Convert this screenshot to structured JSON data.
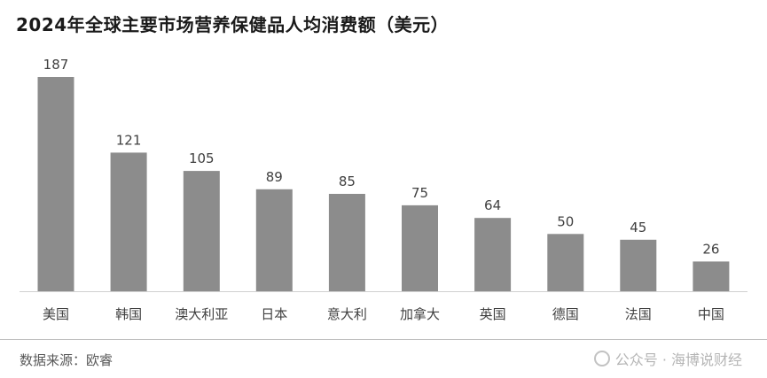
{
  "chart_data": {
    "type": "bar",
    "title": "2024年全球主要市场营养保健品人均消费额（美元）",
    "categories": [
      "美国",
      "韩国",
      "澳大利亚",
      "日本",
      "意大利",
      "加拿大",
      "英国",
      "德国",
      "法国",
      "中国"
    ],
    "values": [
      187,
      121,
      105,
      89,
      85,
      75,
      64,
      50,
      45,
      26
    ],
    "xlabel": "",
    "ylabel": "",
    "ylim": [
      0,
      200
    ],
    "grid": false,
    "legend": "none",
    "bar_color": "#8c8c8c"
  },
  "footer": {
    "source": "数据来源：欧睿",
    "watermark": "公众号 · 海博说财经"
  }
}
